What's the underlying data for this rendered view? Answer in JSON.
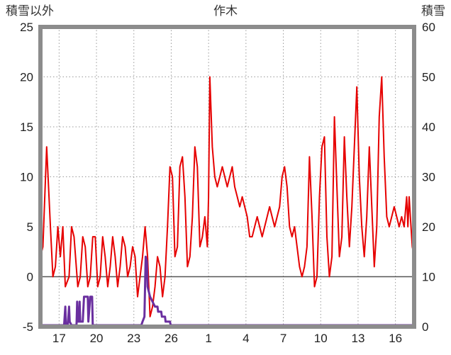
{
  "title": "作木",
  "chart_data": {
    "type": "line",
    "title": "作木",
    "x_axis": {
      "min": 15.5,
      "max": 45.5,
      "ticks": [
        17,
        20,
        23,
        26,
        29,
        32,
        35,
        38,
        41,
        44
      ],
      "tick_labels": [
        "17",
        "20",
        "23",
        "26",
        "1",
        "4",
        "7",
        "10",
        "13",
        "16"
      ]
    },
    "left_axis": {
      "label": "積雪以外",
      "min": -5,
      "max": 25,
      "ticks": [
        25,
        20,
        15,
        10,
        5,
        0,
        -5
      ]
    },
    "right_axis": {
      "label": "積雪",
      "min": 0,
      "max": 60,
      "ticks": [
        60,
        50,
        40,
        30,
        20,
        10,
        0
      ]
    },
    "grid": {
      "color": "#9a9a9a",
      "zero_line_color": "#555555"
    },
    "frame_color": "#8c8c8c",
    "text_color": "#222222",
    "series": [
      {
        "name": "積雪以外",
        "axis": "left",
        "color": "#e60000",
        "width": 2,
        "points": [
          [
            15.5,
            2
          ],
          [
            15.7,
            3
          ],
          [
            16.0,
            13
          ],
          [
            16.3,
            5
          ],
          [
            16.5,
            0
          ],
          [
            16.7,
            1
          ],
          [
            16.9,
            5
          ],
          [
            17.1,
            2
          ],
          [
            17.3,
            5
          ],
          [
            17.5,
            -1
          ],
          [
            17.8,
            0
          ],
          [
            18.0,
            5
          ],
          [
            18.2,
            4
          ],
          [
            18.5,
            -1
          ],
          [
            18.7,
            0
          ],
          [
            18.9,
            4
          ],
          [
            19.1,
            3
          ],
          [
            19.3,
            -1
          ],
          [
            19.5,
            0
          ],
          [
            19.7,
            4
          ],
          [
            19.9,
            4
          ],
          [
            20.1,
            -1
          ],
          [
            20.3,
            0
          ],
          [
            20.5,
            4
          ],
          [
            20.7,
            2
          ],
          [
            20.9,
            -1
          ],
          [
            21.1,
            1
          ],
          [
            21.3,
            4
          ],
          [
            21.5,
            2
          ],
          [
            21.7,
            -1
          ],
          [
            21.9,
            1
          ],
          [
            22.1,
            4
          ],
          [
            22.3,
            3
          ],
          [
            22.5,
            0
          ],
          [
            22.7,
            1
          ],
          [
            22.9,
            3
          ],
          [
            23.1,
            2
          ],
          [
            23.3,
            -2
          ],
          [
            23.5,
            0
          ],
          [
            23.7,
            2
          ],
          [
            23.9,
            5
          ],
          [
            24.1,
            2
          ],
          [
            24.3,
            -4
          ],
          [
            24.5,
            -3
          ],
          [
            24.7,
            -1
          ],
          [
            24.9,
            2
          ],
          [
            25.1,
            1
          ],
          [
            25.3,
            -2
          ],
          [
            25.5,
            0
          ],
          [
            25.7,
            5
          ],
          [
            25.9,
            11
          ],
          [
            26.1,
            10
          ],
          [
            26.3,
            2
          ],
          [
            26.5,
            3
          ],
          [
            26.7,
            11
          ],
          [
            26.9,
            12
          ],
          [
            27.1,
            8
          ],
          [
            27.3,
            1
          ],
          [
            27.5,
            2
          ],
          [
            27.7,
            6
          ],
          [
            27.9,
            13
          ],
          [
            28.1,
            11
          ],
          [
            28.3,
            3
          ],
          [
            28.5,
            4
          ],
          [
            28.7,
            6
          ],
          [
            28.9,
            3
          ],
          [
            29.0,
            8
          ],
          [
            29.1,
            20
          ],
          [
            29.3,
            13
          ],
          [
            29.5,
            10
          ],
          [
            29.7,
            9
          ],
          [
            29.9,
            10
          ],
          [
            30.1,
            11
          ],
          [
            30.3,
            10
          ],
          [
            30.5,
            9
          ],
          [
            30.7,
            10
          ],
          [
            30.9,
            11
          ],
          [
            31.1,
            9
          ],
          [
            31.3,
            8
          ],
          [
            31.5,
            7
          ],
          [
            31.7,
            8
          ],
          [
            31.9,
            7
          ],
          [
            32.1,
            6
          ],
          [
            32.3,
            4
          ],
          [
            32.5,
            4
          ],
          [
            32.7,
            5
          ],
          [
            32.9,
            6
          ],
          [
            33.1,
            5
          ],
          [
            33.3,
            4
          ],
          [
            33.5,
            5
          ],
          [
            33.7,
            6
          ],
          [
            33.9,
            7
          ],
          [
            34.1,
            6
          ],
          [
            34.3,
            5
          ],
          [
            34.5,
            6
          ],
          [
            34.7,
            7
          ],
          [
            34.9,
            10
          ],
          [
            35.1,
            11
          ],
          [
            35.3,
            9
          ],
          [
            35.5,
            5
          ],
          [
            35.7,
            4
          ],
          [
            35.9,
            5
          ],
          [
            36.1,
            3
          ],
          [
            36.3,
            1
          ],
          [
            36.5,
            0
          ],
          [
            36.7,
            1
          ],
          [
            36.9,
            3
          ],
          [
            37.1,
            12
          ],
          [
            37.3,
            6
          ],
          [
            37.5,
            -1
          ],
          [
            37.7,
            0
          ],
          [
            37.9,
            8
          ],
          [
            38.1,
            13
          ],
          [
            38.3,
            14
          ],
          [
            38.5,
            4
          ],
          [
            38.7,
            0
          ],
          [
            38.9,
            2
          ],
          [
            39.1,
            16
          ],
          [
            39.3,
            9
          ],
          [
            39.5,
            2
          ],
          [
            39.7,
            4
          ],
          [
            39.9,
            14
          ],
          [
            40.1,
            8
          ],
          [
            40.3,
            3
          ],
          [
            40.5,
            7
          ],
          [
            40.7,
            13
          ],
          [
            40.9,
            19
          ],
          [
            41.1,
            10
          ],
          [
            41.3,
            5
          ],
          [
            41.5,
            2
          ],
          [
            41.7,
            6
          ],
          [
            41.9,
            13
          ],
          [
            42.1,
            7
          ],
          [
            42.3,
            1
          ],
          [
            42.5,
            5
          ],
          [
            42.7,
            16
          ],
          [
            42.9,
            20
          ],
          [
            43.1,
            12
          ],
          [
            43.3,
            6
          ],
          [
            43.5,
            5
          ],
          [
            43.7,
            6
          ],
          [
            43.9,
            7
          ],
          [
            44.1,
            6
          ],
          [
            44.3,
            5
          ],
          [
            44.5,
            6
          ],
          [
            44.7,
            5
          ],
          [
            44.9,
            8
          ],
          [
            45.0,
            5
          ],
          [
            45.1,
            8
          ],
          [
            45.2,
            6
          ],
          [
            45.35,
            3
          ],
          [
            45.5,
            2
          ]
        ]
      },
      {
        "name": "積雪",
        "axis": "right",
        "color": "#6a2f9f",
        "width": 3,
        "points": [
          [
            15.5,
            0
          ],
          [
            17.4,
            0
          ],
          [
            17.5,
            4
          ],
          [
            17.55,
            0
          ],
          [
            17.7,
            0
          ],
          [
            17.8,
            4
          ],
          [
            17.85,
            1
          ],
          [
            18.0,
            0
          ],
          [
            18.4,
            0
          ],
          [
            18.45,
            5
          ],
          [
            18.5,
            1
          ],
          [
            18.6,
            1
          ],
          [
            18.65,
            5
          ],
          [
            18.7,
            1
          ],
          [
            18.9,
            1
          ],
          [
            19.0,
            6
          ],
          [
            19.3,
            6
          ],
          [
            19.35,
            1
          ],
          [
            19.5,
            6
          ],
          [
            19.65,
            6
          ],
          [
            19.7,
            0
          ],
          [
            23.6,
            0
          ],
          [
            23.7,
            1
          ],
          [
            23.85,
            2
          ],
          [
            23.95,
            14
          ],
          [
            24.05,
            13
          ],
          [
            24.1,
            8
          ],
          [
            24.3,
            6
          ],
          [
            24.5,
            5
          ],
          [
            24.7,
            4
          ],
          [
            24.9,
            4
          ],
          [
            24.95,
            3
          ],
          [
            25.2,
            3
          ],
          [
            25.25,
            2
          ],
          [
            25.5,
            2
          ],
          [
            25.55,
            1
          ],
          [
            25.9,
            1
          ],
          [
            25.95,
            0
          ],
          [
            45.5,
            0
          ]
        ]
      }
    ]
  }
}
